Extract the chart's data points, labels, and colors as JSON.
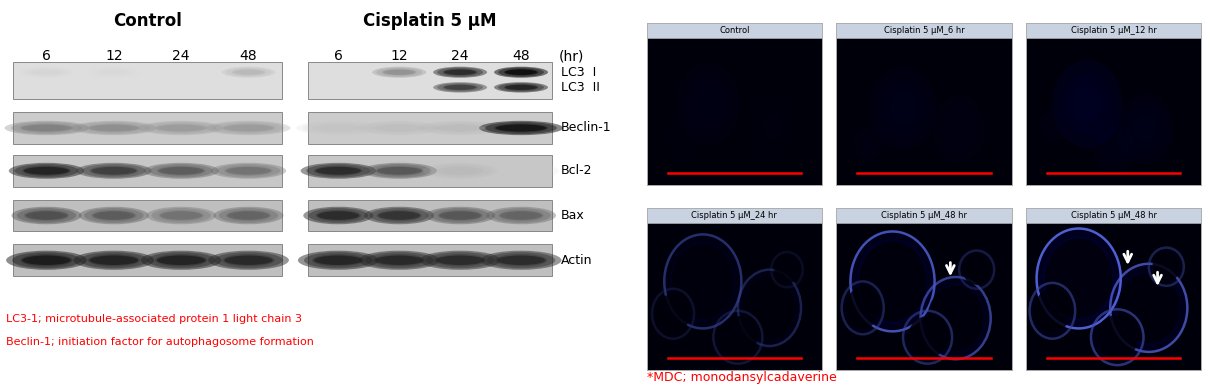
{
  "figure_width": 12.1,
  "figure_height": 3.89,
  "bg_color": "#ffffff",
  "left_panel": {
    "control_label": "Control",
    "cisplatin_label": "Cisplatin 5 μM",
    "time_labels": [
      "6",
      "12",
      "24",
      "48"
    ],
    "hr_label": "(hr)",
    "protein_labels": [
      "LC3  I",
      "LC3  II",
      "Beclin-1",
      "Bcl-2",
      "Bax",
      "Actin"
    ],
    "arrow_color": "#ff0000",
    "label_color": "#000000",
    "header_color": "#000000",
    "footnote_line1": "LC3-1; microtubule-associated protein 1 light chain 3",
    "footnote_line2": "Beclin-1; initiation factor for autophagosome formation",
    "footnote_color": "#ff0000"
  },
  "right_panel": {
    "titles": [
      "Control",
      "Cisplatin 5 μM_6 hr",
      "Cisplatin 5 μM_12 hr",
      "Cisplatin 5 μM_24 hr",
      "Cisplatin 5 μM_48 hr",
      "Cisplatin 5 μM_48 hr"
    ],
    "footnote": "*MDC; monodansylcadaverine",
    "footnote_color": "#ff0000"
  }
}
